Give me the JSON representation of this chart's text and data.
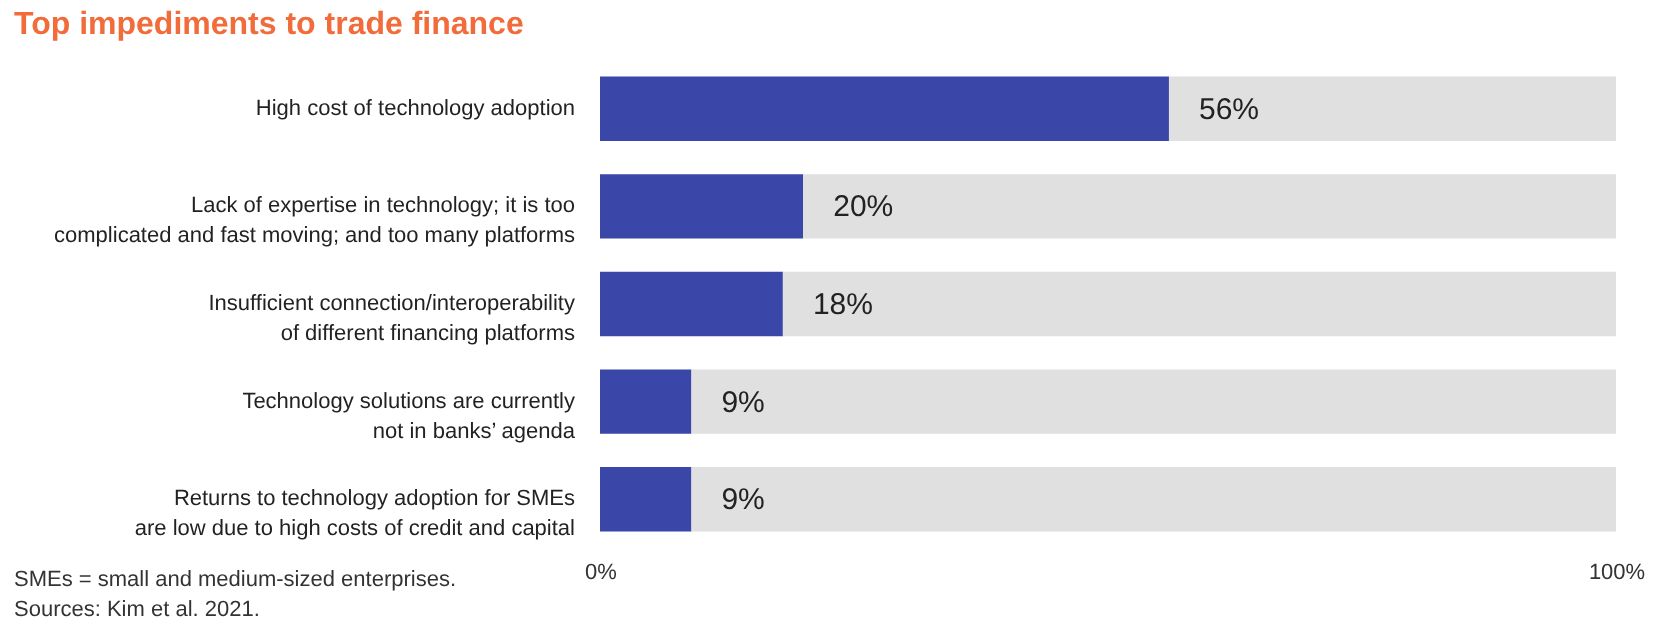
{
  "chart_data": {
    "type": "bar",
    "orientation": "horizontal",
    "stacked": true,
    "title": "Top impediments to trade finance",
    "categories": [
      "High cost of technology adoption",
      "Lack of expertise in technology; it is too\ncomplicated and fast moving; and too many platforms",
      "Insufficient connection/interoperability\nof different financing platforms",
      "Technology solutions are currently\nnot in banks’ agenda",
      "Returns to technology adoption for SMEs\nare low due to high costs of credit and capital"
    ],
    "series": [
      {
        "color": "#3a47a8",
        "values": [
          56,
          20,
          18,
          9,
          9
        ],
        "value_labels": [
          "56%",
          "20%",
          "18%",
          "9%",
          "9%"
        ]
      },
      {
        "color": "#e0e0e0",
        "values": [
          44,
          80,
          82,
          91,
          91
        ]
      }
    ],
    "xlim": [
      0,
      100
    ],
    "xticks": [
      {
        "value": 0,
        "label": "0%"
      },
      {
        "value": 100,
        "label": "100%"
      }
    ],
    "legend": false,
    "annotations": [
      "SMEs = small and medium-sized enterprises.",
      "Sources: Kim et al. 2021."
    ]
  }
}
